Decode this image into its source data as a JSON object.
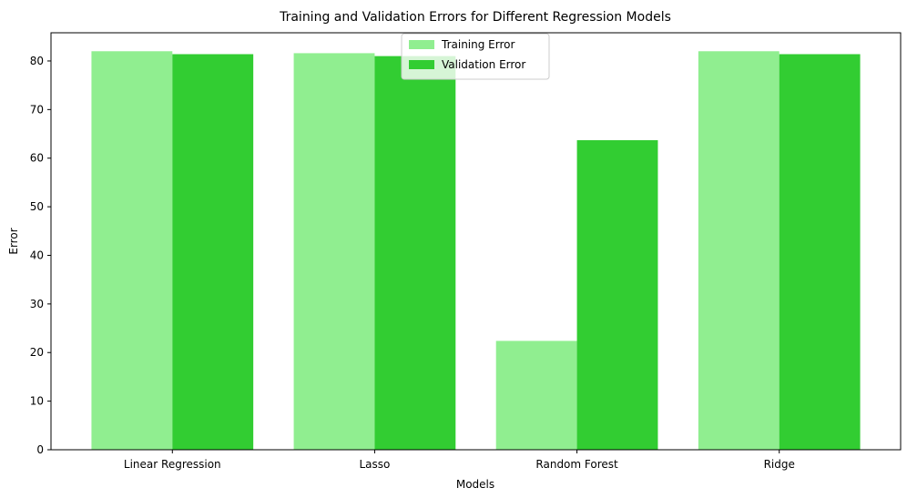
{
  "chart_data": {
    "type": "bar",
    "title": "Training and Validation Errors for Different Regression Models",
    "xlabel": "Models",
    "ylabel": "Error",
    "categories": [
      "Linear Regression",
      "Lasso",
      "Random Forest",
      "Ridge"
    ],
    "series": [
      {
        "name": "Training Error",
        "values": [
          82.0,
          81.6,
          22.4,
          82.0
        ],
        "color": "#90ee90"
      },
      {
        "name": "Validation Error",
        "values": [
          81.4,
          81.0,
          63.7,
          81.4
        ],
        "color": "#32cd32"
      }
    ],
    "ylim": [
      0,
      85.8
    ],
    "yticks": [
      0,
      10,
      20,
      30,
      40,
      50,
      60,
      70,
      80
    ],
    "grid": false,
    "legend_position": "top-center"
  }
}
